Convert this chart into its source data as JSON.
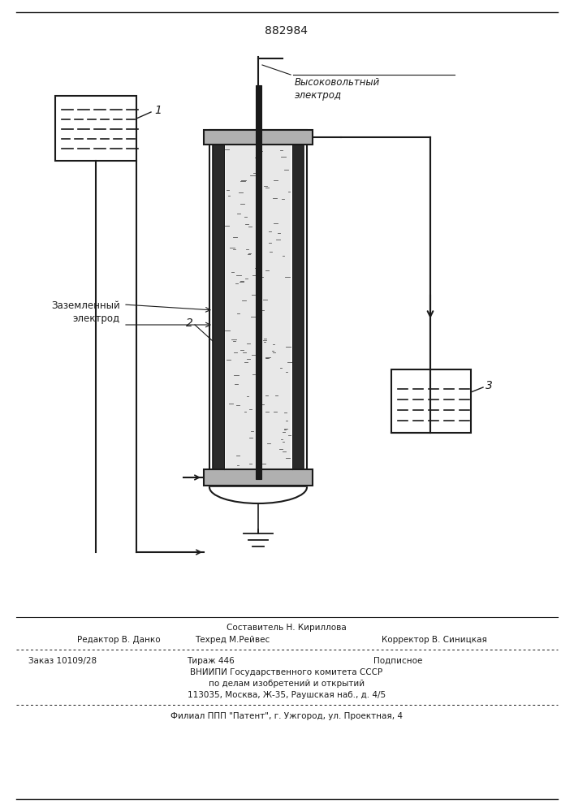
{
  "patent_number": "882984",
  "bg_color": "#ffffff",
  "line_color": "#1a1a1a",
  "label1": "1",
  "label2": "2",
  "label3": "3",
  "label_electrode_high": "Высоковольтный\nэлектрод",
  "label_electrode_ground": "Заземленный\nэлектрод",
  "footer_col1_line1": "Составитель Н. Кириллова",
  "footer_col1_line2": "Редактор В. Данко",
  "footer_col2_line2": "Техред М.Рейвес",
  "footer_col3_line2": "Корректор В. Синицкая",
  "footer_col1_line3": "Заказ 10109/28",
  "footer_col2_line3": "Тираж 446",
  "footer_col3_line3": "Подписное",
  "footer_line4": "ВНИИПИ Государственного комитета СССР",
  "footer_line5": "по делам изобретений и открытий",
  "footer_line6": "113035, Москва, Ж-35, Раушская наб., д. 4/5",
  "footer_line7": "Филиал ППП \"Патент\", г. Ужгород, ул. Проектная, 4"
}
